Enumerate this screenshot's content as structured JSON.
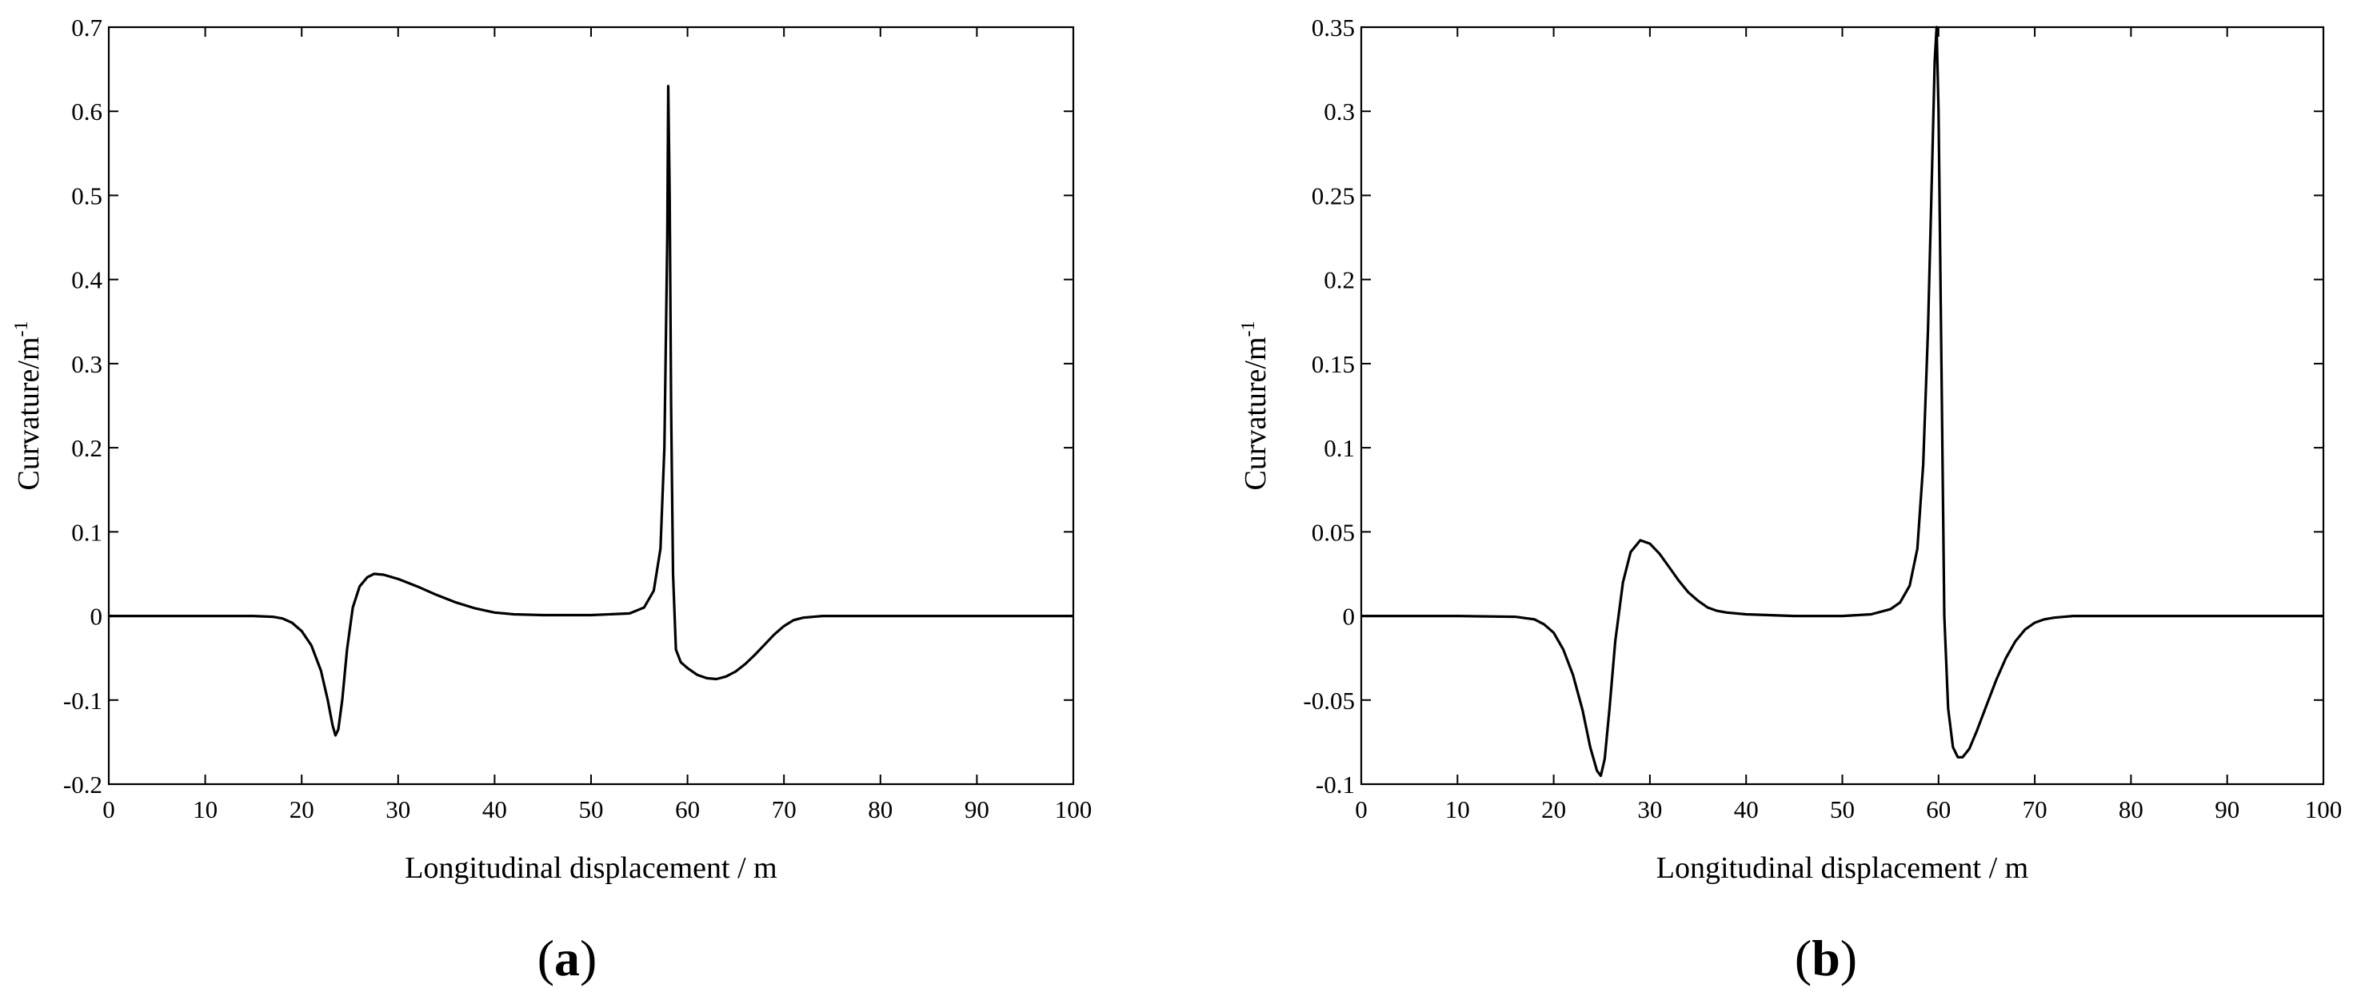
{
  "chart_data": [
    {
      "panel_label": "a",
      "type": "line",
      "xlabel": "Longitudinal displacement / m",
      "ylabel": "Curvature/m",
      "ylabel_superscript": "-1",
      "xlim": [
        0,
        100
      ],
      "ylim": [
        -0.2,
        0.7
      ],
      "xticks": [
        0,
        10,
        20,
        30,
        40,
        50,
        60,
        70,
        80,
        90,
        100
      ],
      "xtick_labels": [
        "0",
        "10",
        "20",
        "30",
        "40",
        "50",
        "60",
        "70",
        "80",
        "90",
        "100"
      ],
      "yticks": [
        -0.2,
        -0.1,
        0,
        0.1,
        0.2,
        0.3,
        0.4,
        0.5,
        0.6,
        0.7
      ],
      "ytick_labels": [
        "-0.2",
        "-0.1",
        "0",
        "0.1",
        "0.2",
        "0.3",
        "0.4",
        "0.5",
        "0.6",
        "0.7"
      ],
      "grid": false,
      "series": [
        {
          "x": [
            0,
            10,
            15,
            17,
            18,
            19,
            20,
            21,
            22,
            22.7,
            23.2,
            23.5,
            23.8,
            24.2,
            24.7,
            25.3,
            26,
            26.8,
            27.5,
            28.5,
            30,
            32,
            34,
            36,
            38,
            40,
            42,
            45,
            50,
            54,
            55.5,
            56.5,
            57.2,
            57.6,
            57.9,
            58.0,
            58.15,
            58.3,
            58.5,
            58.8,
            59.3,
            60,
            61,
            62,
            63,
            64,
            65,
            66,
            67,
            68,
            69,
            70,
            71,
            72,
            74,
            76,
            80,
            90,
            100
          ],
          "y": [
            0,
            0,
            0,
            -0.001,
            -0.003,
            -0.008,
            -0.018,
            -0.035,
            -0.065,
            -0.1,
            -0.13,
            -0.142,
            -0.135,
            -0.1,
            -0.04,
            0.01,
            0.035,
            0.046,
            0.05,
            0.049,
            0.044,
            0.035,
            0.025,
            0.016,
            0.009,
            0.004,
            0.002,
            0.001,
            0.001,
            0.003,
            0.01,
            0.03,
            0.08,
            0.2,
            0.45,
            0.63,
            0.5,
            0.25,
            0.05,
            -0.04,
            -0.055,
            -0.062,
            -0.07,
            -0.074,
            -0.075,
            -0.072,
            -0.066,
            -0.057,
            -0.046,
            -0.034,
            -0.022,
            -0.012,
            -0.005,
            -0.002,
            0,
            0,
            0,
            0,
            0
          ]
        }
      ]
    },
    {
      "panel_label": "b",
      "type": "line",
      "xlabel": "Longitudinal displacement / m",
      "ylabel": "Curvature/m",
      "ylabel_superscript": "-1",
      "xlim": [
        0,
        100
      ],
      "ylim": [
        -0.1,
        0.35
      ],
      "xticks": [
        0,
        10,
        20,
        30,
        40,
        50,
        60,
        70,
        80,
        90,
        100
      ],
      "xtick_labels": [
        "0",
        "10",
        "20",
        "30",
        "40",
        "50",
        "60",
        "70",
        "80",
        "90",
        "100"
      ],
      "yticks": [
        -0.1,
        -0.05,
        0,
        0.05,
        0.1,
        0.15,
        0.2,
        0.25,
        0.3,
        0.35
      ],
      "ytick_labels": [
        "-0.1",
        "-0.05",
        "0",
        "0.05",
        "0.1",
        "0.15",
        "0.2",
        "0.25",
        "0.3",
        "0.35"
      ],
      "grid": false,
      "series": [
        {
          "x": [
            0,
            10,
            16,
            18,
            19,
            20,
            21,
            22,
            23,
            23.8,
            24.5,
            24.9,
            25.3,
            25.8,
            26.4,
            27.2,
            28,
            29,
            30,
            31,
            32,
            33,
            34,
            35,
            36,
            37,
            38,
            40,
            45,
            50,
            53,
            55,
            56,
            57,
            57.8,
            58.4,
            58.9,
            59.3,
            59.6,
            59.8,
            60.0,
            60.3,
            60.6,
            61.0,
            61.5,
            62.0,
            62.5,
            63.2,
            64,
            65,
            66,
            67,
            68,
            69,
            70,
            71,
            72,
            74,
            76,
            80,
            90,
            100
          ],
          "y": [
            0,
            0,
            -0.0005,
            -0.002,
            -0.005,
            -0.01,
            -0.02,
            -0.035,
            -0.056,
            -0.078,
            -0.092,
            -0.095,
            -0.085,
            -0.055,
            -0.015,
            0.02,
            0.038,
            0.045,
            0.043,
            0.037,
            0.029,
            0.021,
            0.014,
            0.009,
            0.005,
            0.003,
            0.002,
            0.001,
            0,
            0,
            0.001,
            0.004,
            0.008,
            0.018,
            0.04,
            0.09,
            0.17,
            0.26,
            0.33,
            0.35,
            0.3,
            0.15,
            0.0,
            -0.055,
            -0.078,
            -0.084,
            -0.084,
            -0.079,
            -0.068,
            -0.053,
            -0.038,
            -0.025,
            -0.015,
            -0.008,
            -0.004,
            -0.002,
            -0.001,
            0,
            0,
            0,
            0,
            0
          ]
        }
      ]
    }
  ]
}
